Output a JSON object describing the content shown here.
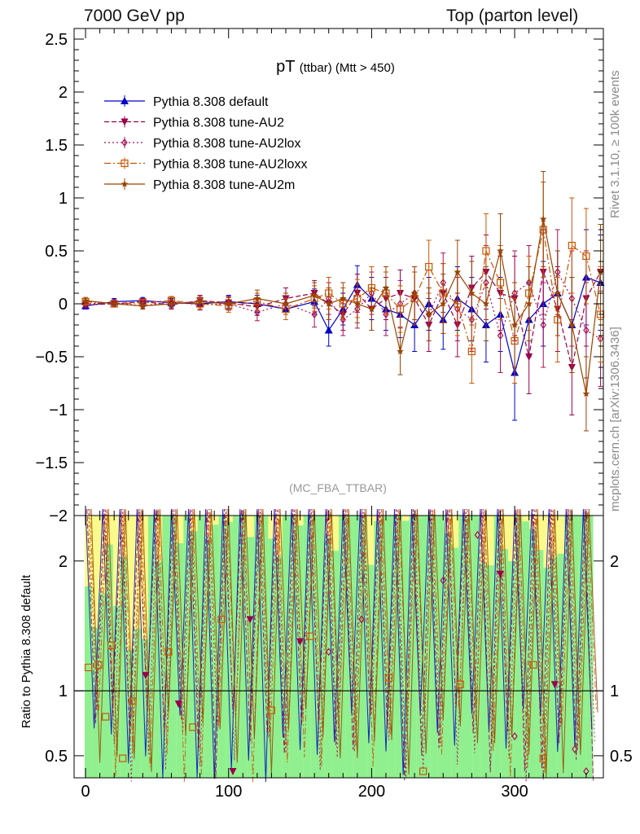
{
  "header": {
    "left": "7000 GeV pp",
    "right": "Top (parton level)"
  },
  "side": {
    "rivet": "Rivet 3.1.10, ≥ 100k events",
    "mcplots": "mcplots.cern.ch [arXiv:1306.3436]"
  },
  "chart_data": [
    {
      "type": "line",
      "panel": "main",
      "title_main": "pT",
      "title_sub": "(ttbar) (Mtt > 450)",
      "watermark": "(MC_FBA_TTBAR)",
      "xlim": [
        -8,
        362
      ],
      "ylim": [
        -2,
        2.6
      ],
      "yticks": [
        -2,
        -1.5,
        -1,
        -0.5,
        0,
        0.5,
        1,
        1.5,
        2,
        2.5
      ],
      "ytick_labels": [
        "−2",
        "−1.5",
        "−1",
        "−0.5",
        "0",
        "0.5",
        "1",
        "1.5",
        "2",
        "2.5"
      ],
      "legend_position": "top-left",
      "series": [
        {
          "name": "Pythia 8.308 default",
          "color": "#0000cc",
          "marker": "triangle-up",
          "dash": "solid",
          "x": [
            0,
            20,
            40,
            60,
            80,
            100,
            120,
            140,
            160,
            170,
            180,
            190,
            200,
            210,
            220,
            230,
            240,
            250,
            260,
            270,
            280,
            290,
            300,
            310,
            320,
            330,
            340,
            350,
            360
          ],
          "y": [
            -0.02,
            0.02,
            0.03,
            0.01,
            0.0,
            0.02,
            0.0,
            -0.05,
            0.02,
            -0.25,
            -0.05,
            0.18,
            0.05,
            -0.05,
            -0.1,
            -0.2,
            0.0,
            -0.15,
            0.05,
            -0.05,
            -0.2,
            -0.1,
            -0.65,
            -0.15,
            0.0,
            0.1,
            -0.2,
            0.25,
            0.2
          ],
          "err": [
            0.03,
            0.03,
            0.03,
            0.04,
            0.05,
            0.06,
            0.08,
            0.1,
            0.12,
            0.15,
            0.15,
            0.18,
            0.2,
            0.2,
            0.22,
            0.25,
            0.25,
            0.28,
            0.3,
            0.3,
            0.35,
            0.35,
            0.45,
            0.35,
            0.4,
            0.4,
            0.45,
            0.45,
            0.45
          ]
        },
        {
          "name": "Pythia 8.308 tune-AU2",
          "color": "#99004c",
          "marker": "triangle-down",
          "dash": "6,3",
          "x": [
            0,
            20,
            40,
            60,
            80,
            100,
            120,
            140,
            160,
            170,
            180,
            190,
            200,
            210,
            220,
            230,
            240,
            250,
            260,
            270,
            280,
            290,
            300,
            310,
            320,
            330,
            340,
            350,
            360
          ],
          "y": [
            -0.01,
            0.0,
            0.02,
            -0.01,
            0.03,
            0.01,
            -0.03,
            0.05,
            0.1,
            0.0,
            -0.1,
            0.1,
            -0.05,
            0.05,
            0.1,
            0.05,
            -0.2,
            0.1,
            -0.2,
            0.15,
            0.3,
            0.1,
            0.05,
            -0.5,
            0.3,
            -0.05,
            -0.6,
            0.05,
            0.3
          ],
          "err": [
            0.03,
            0.03,
            0.03,
            0.04,
            0.05,
            0.06,
            0.08,
            0.1,
            0.12,
            0.15,
            0.15,
            0.18,
            0.2,
            0.2,
            0.22,
            0.25,
            0.25,
            0.28,
            0.3,
            0.3,
            0.35,
            0.35,
            0.4,
            0.35,
            0.4,
            0.4,
            0.45,
            0.45,
            0.45
          ]
        },
        {
          "name": "Pythia 8.308 tune-AU2lox",
          "color": "#aa1155",
          "marker": "diamond",
          "dash": "2,3",
          "x": [
            0,
            20,
            40,
            60,
            80,
            100,
            120,
            140,
            160,
            170,
            180,
            190,
            200,
            210,
            220,
            230,
            240,
            250,
            260,
            270,
            280,
            290,
            300,
            310,
            320,
            330,
            340,
            350,
            360
          ],
          "y": [
            0.0,
            0.01,
            -0.02,
            0.02,
            -0.01,
            0.0,
            -0.08,
            0.0,
            -0.1,
            0.05,
            -0.15,
            -0.05,
            0.1,
            -0.1,
            0.0,
            0.1,
            -0.1,
            0.2,
            -0.05,
            -0.15,
            0.2,
            -0.3,
            0.1,
            0.2,
            -0.2,
            0.3,
            0.05,
            -0.25,
            -0.33
          ],
          "err": [
            0.03,
            0.03,
            0.03,
            0.04,
            0.05,
            0.06,
            0.08,
            0.1,
            0.12,
            0.15,
            0.15,
            0.18,
            0.2,
            0.2,
            0.22,
            0.25,
            0.25,
            0.28,
            0.3,
            0.3,
            0.35,
            0.35,
            0.4,
            0.35,
            0.4,
            0.4,
            0.45,
            0.45,
            0.45
          ]
        },
        {
          "name": "Pythia 8.308 tune-AU2loxx",
          "color": "#cc5500",
          "marker": "square-open",
          "dash": "8,3,2,3",
          "x": [
            0,
            20,
            40,
            60,
            80,
            100,
            120,
            140,
            160,
            170,
            180,
            190,
            200,
            210,
            220,
            230,
            240,
            250,
            260,
            270,
            280,
            290,
            300,
            310,
            320,
            330,
            340,
            350,
            360
          ],
          "y": [
            0.02,
            0.0,
            0.01,
            0.03,
            0.0,
            -0.02,
            0.02,
            -0.05,
            0.05,
            0.1,
            0.0,
            0.05,
            0.15,
            0.1,
            -0.05,
            0.05,
            0.35,
            0.1,
            0.0,
            -0.45,
            0.5,
            0.2,
            -0.35,
            0.1,
            0.7,
            -0.15,
            0.55,
            0.45,
            -0.1
          ],
          "err": [
            0.03,
            0.03,
            0.03,
            0.04,
            0.05,
            0.06,
            0.08,
            0.1,
            0.12,
            0.15,
            0.15,
            0.18,
            0.2,
            0.2,
            0.22,
            0.25,
            0.25,
            0.28,
            0.3,
            0.3,
            0.35,
            0.35,
            0.4,
            0.35,
            0.45,
            0.4,
            0.45,
            0.45,
            0.45
          ]
        },
        {
          "name": "Pythia 8.308 tune-AU2m",
          "color": "#994400",
          "marker": "star",
          "dash": "solid",
          "x": [
            0,
            20,
            40,
            60,
            80,
            100,
            120,
            140,
            160,
            170,
            180,
            190,
            200,
            210,
            220,
            230,
            240,
            250,
            260,
            270,
            280,
            290,
            300,
            310,
            320,
            330,
            340,
            350,
            360
          ],
          "y": [
            0.03,
            0.0,
            -0.02,
            0.0,
            0.02,
            0.0,
            0.05,
            0.0,
            0.08,
            0.0,
            0.05,
            0.0,
            -0.05,
            0.15,
            -0.45,
            0.1,
            -0.1,
            0.0,
            0.3,
            0.1,
            0.0,
            0.5,
            -0.2,
            0.0,
            0.8,
            0.1,
            -0.2,
            -0.85,
            0.3
          ],
          "err": [
            0.03,
            0.03,
            0.03,
            0.04,
            0.05,
            0.06,
            0.08,
            0.1,
            0.12,
            0.15,
            0.15,
            0.18,
            0.2,
            0.2,
            0.22,
            0.25,
            0.25,
            0.28,
            0.3,
            0.3,
            0.35,
            0.35,
            0.4,
            0.35,
            0.45,
            0.4,
            0.45,
            0.35,
            0.45
          ]
        }
      ]
    },
    {
      "type": "line",
      "panel": "ratio",
      "ylabel": "Ratio to Pythia 8.308 default",
      "xlim": [
        -8,
        362
      ],
      "ylim": [
        0.33,
        2.35
      ],
      "yticks": [
        0.5,
        1,
        2
      ],
      "ytick_labels": [
        "0.5",
        "1",
        "2"
      ],
      "xticks": [
        0,
        100,
        200,
        300
      ],
      "xtick_labels": [
        "0",
        "100",
        "200",
        "300"
      ],
      "reference_line": 1,
      "bands": {
        "inner_color": "#90f090",
        "outer_color": "#fafa8c"
      },
      "points": [
        {
          "x": 2,
          "y": 1.18,
          "s": 3
        },
        {
          "x": 9,
          "y": 1.2,
          "s": 3
        },
        {
          "x": 14,
          "y": 0.8,
          "s": 3
        },
        {
          "x": 18,
          "y": 1.35,
          "s": 3
        },
        {
          "x": 26,
          "y": 0.48,
          "s": 3
        },
        {
          "x": 33,
          "y": 0.92,
          "s": 3
        },
        {
          "x": 42,
          "y": 1.12,
          "s": 1
        },
        {
          "x": 58,
          "y": 1.3,
          "s": 3
        },
        {
          "x": 65,
          "y": 0.9,
          "s": 1
        },
        {
          "x": 75,
          "y": 0.72,
          "s": 3
        },
        {
          "x": 95,
          "y": 1.55,
          "s": 3
        },
        {
          "x": 103,
          "y": 0.38,
          "s": 1
        },
        {
          "x": 115,
          "y": 1.55,
          "s": 1
        },
        {
          "x": 130,
          "y": 0.85,
          "s": 3
        },
        {
          "x": 150,
          "y": 1.38,
          "s": 1
        },
        {
          "x": 157,
          "y": 1.42,
          "s": 3
        },
        {
          "x": 170,
          "y": 1.3,
          "s": 2
        },
        {
          "x": 193,
          "y": 1.55,
          "s": 2
        },
        {
          "x": 212,
          "y": 1.1,
          "s": 3
        },
        {
          "x": 236,
          "y": 0.38,
          "s": 3
        },
        {
          "x": 250,
          "y": 1.85,
          "s": 2
        },
        {
          "x": 262,
          "y": 1.05,
          "s": 3
        },
        {
          "x": 274,
          "y": 2.2,
          "s": 2
        },
        {
          "x": 290,
          "y": 1.9,
          "s": 1
        },
        {
          "x": 300,
          "y": 0.65,
          "s": 2
        },
        {
          "x": 313,
          "y": 1.2,
          "s": 3
        },
        {
          "x": 320,
          "y": 0.48,
          "s": 3
        },
        {
          "x": 328,
          "y": 1.05,
          "s": 1
        },
        {
          "x": 342,
          "y": 0.55,
          "s": 2
        },
        {
          "x": 350,
          "y": 0.38,
          "s": 2
        }
      ]
    }
  ]
}
